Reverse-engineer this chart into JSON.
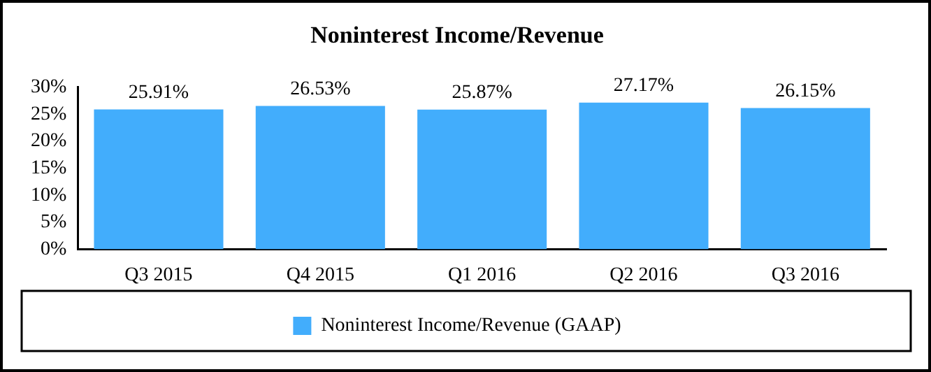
{
  "chart_data": {
    "type": "bar",
    "title": "Noninterest Income/Revenue",
    "categories": [
      "Q3 2015",
      "Q4 2015",
      "Q1 2016",
      "Q2 2016",
      "Q3 2016"
    ],
    "series": [
      {
        "name": "Noninterest Income/Revenue (GAAP)",
        "color": "#42adfc",
        "values": [
          25.91,
          26.53,
          25.87,
          27.17,
          26.15
        ],
        "value_labels": [
          "25.91%",
          "26.53%",
          "25.87%",
          "27.17%",
          "26.15%"
        ]
      }
    ],
    "ylim": [
      0,
      30
    ],
    "yticks": [
      {
        "value": 0,
        "label": "0%"
      },
      {
        "value": 5,
        "label": "5%"
      },
      {
        "value": 10,
        "label": "10%"
      },
      {
        "value": 15,
        "label": "15%"
      },
      {
        "value": 20,
        "label": "20%"
      },
      {
        "value": 25,
        "label": "25%"
      },
      {
        "value": 30,
        "label": "30%"
      }
    ],
    "grid": false,
    "legend": "bottom"
  }
}
